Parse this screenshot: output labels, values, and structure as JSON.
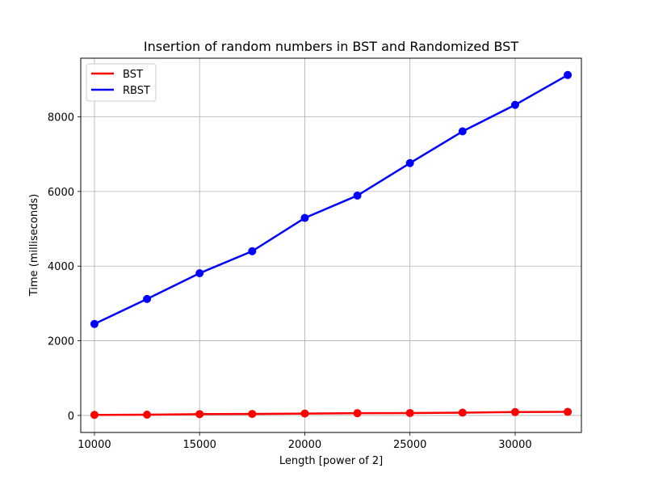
{
  "chart_data": {
    "type": "line",
    "title": "Insertion of random numbers in BST and Randomized BST",
    "xlabel": "Length [power of 2]",
    "ylabel": "Time (milliseconds)",
    "x": [
      10000,
      12500,
      15000,
      17500,
      20000,
      22500,
      25000,
      27500,
      30000,
      32500
    ],
    "xlim": [
      9350,
      33150
    ],
    "ylim": [
      -456,
      9570
    ],
    "xticks": [
      10000,
      15000,
      20000,
      25000,
      30000
    ],
    "yticks": [
      0,
      2000,
      4000,
      6000,
      8000
    ],
    "grid": true,
    "legend_position": "top-left",
    "series": [
      {
        "name": "BST",
        "color": "#ff0000",
        "values": [
          15,
          20,
          35,
          40,
          50,
          60,
          65,
          75,
          90,
          95
        ]
      },
      {
        "name": "RBST",
        "color": "#0000ff",
        "values": [
          2450,
          3120,
          3810,
          4400,
          5290,
          5890,
          6760,
          7610,
          8320,
          9120
        ]
      }
    ]
  }
}
